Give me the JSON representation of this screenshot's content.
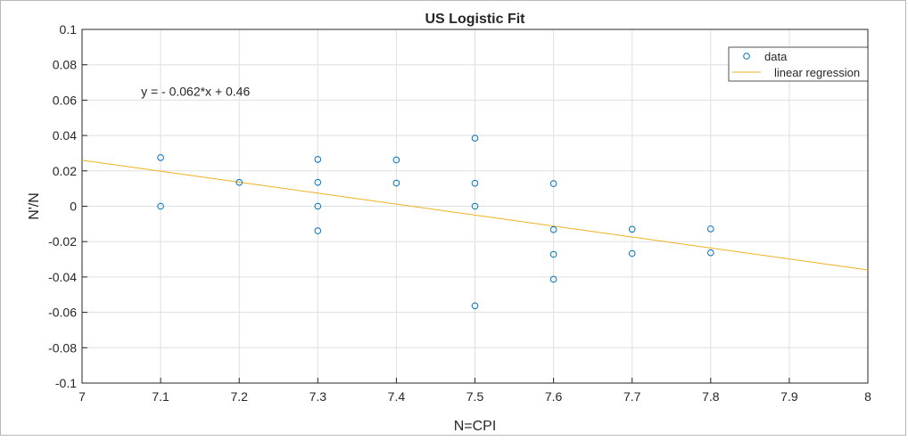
{
  "chart_data": {
    "type": "scatter",
    "title": "US Logistic Fit",
    "xlabel": "N=CPI",
    "ylabel": "N'/N",
    "xlim": [
      7,
      8
    ],
    "ylim": [
      -0.1,
      0.1
    ],
    "xticks": [
      7,
      7.1,
      7.2,
      7.3,
      7.4,
      7.5,
      7.6,
      7.7,
      7.8,
      7.9,
      8
    ],
    "xtick_labels": [
      "7",
      "7.1",
      "7.2",
      "7.3",
      "7.4",
      "7.5",
      "7.6",
      "7.7",
      "7.8",
      "7.9",
      "8"
    ],
    "yticks": [
      -0.1,
      -0.08,
      -0.06,
      -0.04,
      -0.02,
      0,
      0.02,
      0.04,
      0.06,
      0.08,
      0.1
    ],
    "ytick_labels": [
      "-0.1",
      "-0.08",
      "-0.06",
      "-0.04",
      "-0.02",
      "0",
      "0.02",
      "0.04",
      "0.06",
      "0.08",
      "0.1"
    ],
    "grid": true,
    "legend_position": "top-right",
    "series": [
      {
        "name": "data",
        "kind": "markers",
        "marker": "circle",
        "color": "#0072BD",
        "points": [
          {
            "x": 7.1,
            "y": 0.0275
          },
          {
            "x": 7.1,
            "y": 0.0
          },
          {
            "x": 7.2,
            "y": 0.0135
          },
          {
            "x": 7.3,
            "y": 0.0265
          },
          {
            "x": 7.3,
            "y": 0.0135
          },
          {
            "x": 7.3,
            "y": 0.0
          },
          {
            "x": 7.3,
            "y": -0.0139
          },
          {
            "x": 7.4,
            "y": 0.0262
          },
          {
            "x": 7.4,
            "y": 0.0131
          },
          {
            "x": 7.5,
            "y": 0.0385
          },
          {
            "x": 7.5,
            "y": 0.013
          },
          {
            "x": 7.5,
            "y": 0.0
          },
          {
            "x": 7.5,
            "y": -0.0563
          },
          {
            "x": 7.6,
            "y": 0.0128
          },
          {
            "x": 7.6,
            "y": -0.0132
          },
          {
            "x": 7.6,
            "y": -0.0272
          },
          {
            "x": 7.6,
            "y": -0.0413
          },
          {
            "x": 7.7,
            "y": -0.013
          },
          {
            "x": 7.7,
            "y": -0.0267
          },
          {
            "x": 7.8,
            "y": -0.0128
          },
          {
            "x": 7.8,
            "y": -0.0263
          }
        ]
      },
      {
        "name": "linear regression",
        "kind": "line",
        "color": "#EDB120",
        "slope": -0.062,
        "intercept": 0.46,
        "x_range": [
          7,
          8
        ]
      }
    ],
    "annotations": [
      {
        "text": "y = - 0.062*x + 0.46",
        "x": 7.075,
        "y": 0.065
      }
    ]
  }
}
